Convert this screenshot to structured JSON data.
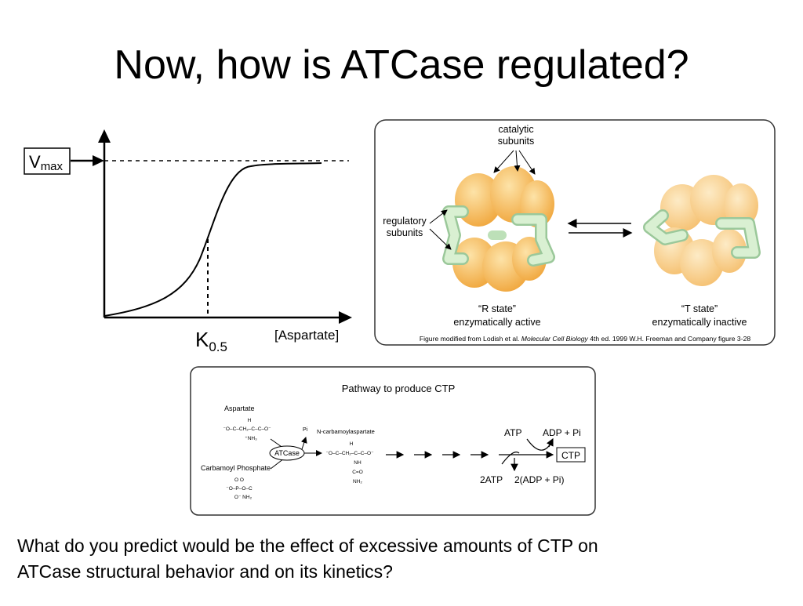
{
  "title": "Now, how is ATCase regulated?",
  "kinetics_graph": {
    "y_label": {
      "main": "V",
      "sub": "max"
    },
    "x_marker": {
      "main": "K",
      "sub": "0.5"
    },
    "x_label": "[Aspartate]"
  },
  "structure_figure": {
    "catalytic_label": [
      "catalytic",
      "subunits"
    ],
    "regulatory_label": [
      "regulatory",
      "subunits"
    ],
    "r_state": [
      "“R state”",
      "enzymatically active"
    ],
    "t_state": [
      "“T state”",
      "enzymatically inactive"
    ],
    "caption": {
      "before": "Figure modified from Lodish et al. ",
      "italic": "Molecular Cell Biology",
      "after": " 4th ed. 1999 W.H. Freeman and Company figure 3-28"
    }
  },
  "pathway": {
    "title": "Pathway to produce CTP",
    "aspartate": "Aspartate",
    "aspartate_formula": [
      "H",
      "⁻O–C–CH₂–C–C–O⁻",
      "⁺NH₃"
    ],
    "carbamoyl_phosphate": "Carbamoyl Phosphate",
    "carbamoyl_formula": [
      "O      O",
      "⁻O–P–O–C",
      "O⁻         NH₂"
    ],
    "enzyme": "ATCase",
    "pi": "Pi",
    "product": "N-carbamoylaspartate",
    "product_formula": [
      "H",
      "⁻O–C–CH₂–C–C–O⁻",
      "NH",
      "C=O",
      "NH₂"
    ],
    "atp": "ATP",
    "adp_pi": "ADP + Pi",
    "ctp": "CTP",
    "two_atp": "2ATP",
    "two_adp_pi": "2(ADP + Pi)"
  },
  "question": [
    "What do you predict would be the effect of excessive amounts of CTP on",
    "ATCase structural behavior and on its kinetics?"
  ]
}
